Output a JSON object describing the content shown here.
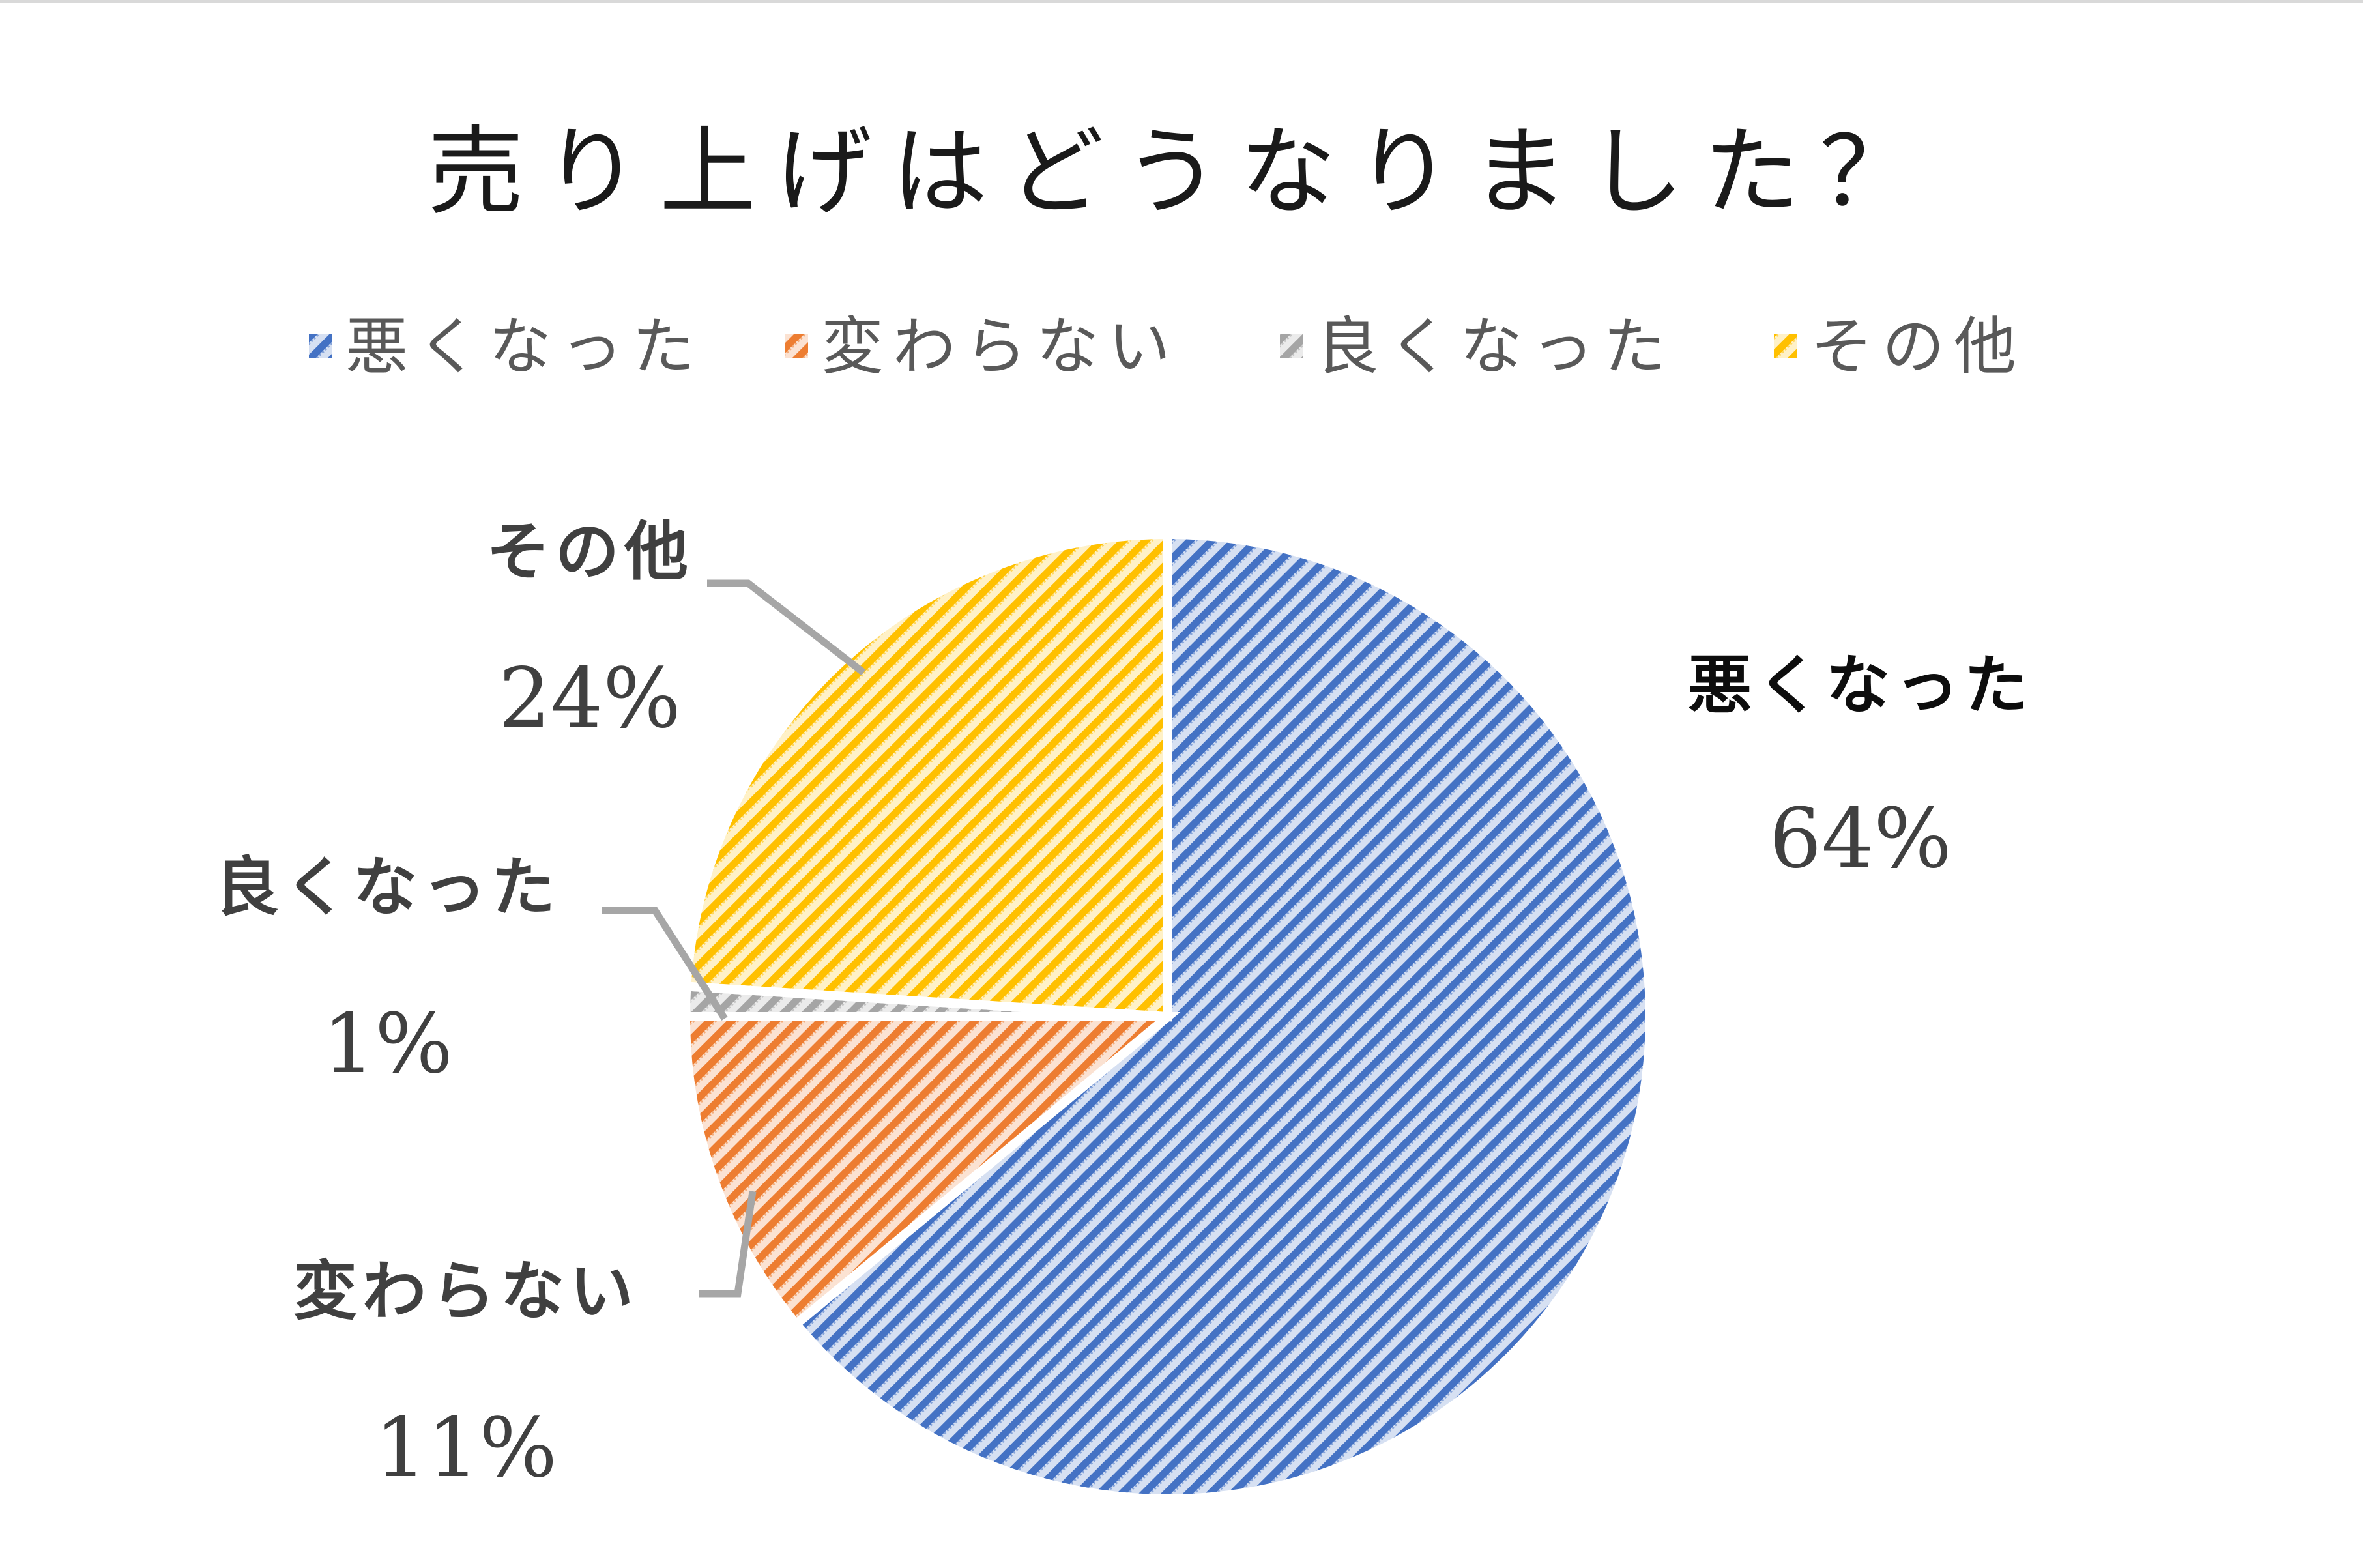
{
  "chart_data": {
    "type": "pie",
    "title": "売り上げはどうなりました？",
    "legend_position": "top",
    "slices": [
      {
        "name": "悪くなった",
        "value": 64,
        "label": "64%",
        "color": "#4472C4"
      },
      {
        "name": "変わらない",
        "value": 11,
        "label": "11%",
        "color": "#ED7D31"
      },
      {
        "name": "良くなった",
        "value": 1,
        "label": "1%",
        "color": "#A5A5A5"
      },
      {
        "name": "その他",
        "value": 24,
        "label": "24%",
        "color": "#FFC000"
      }
    ]
  }
}
